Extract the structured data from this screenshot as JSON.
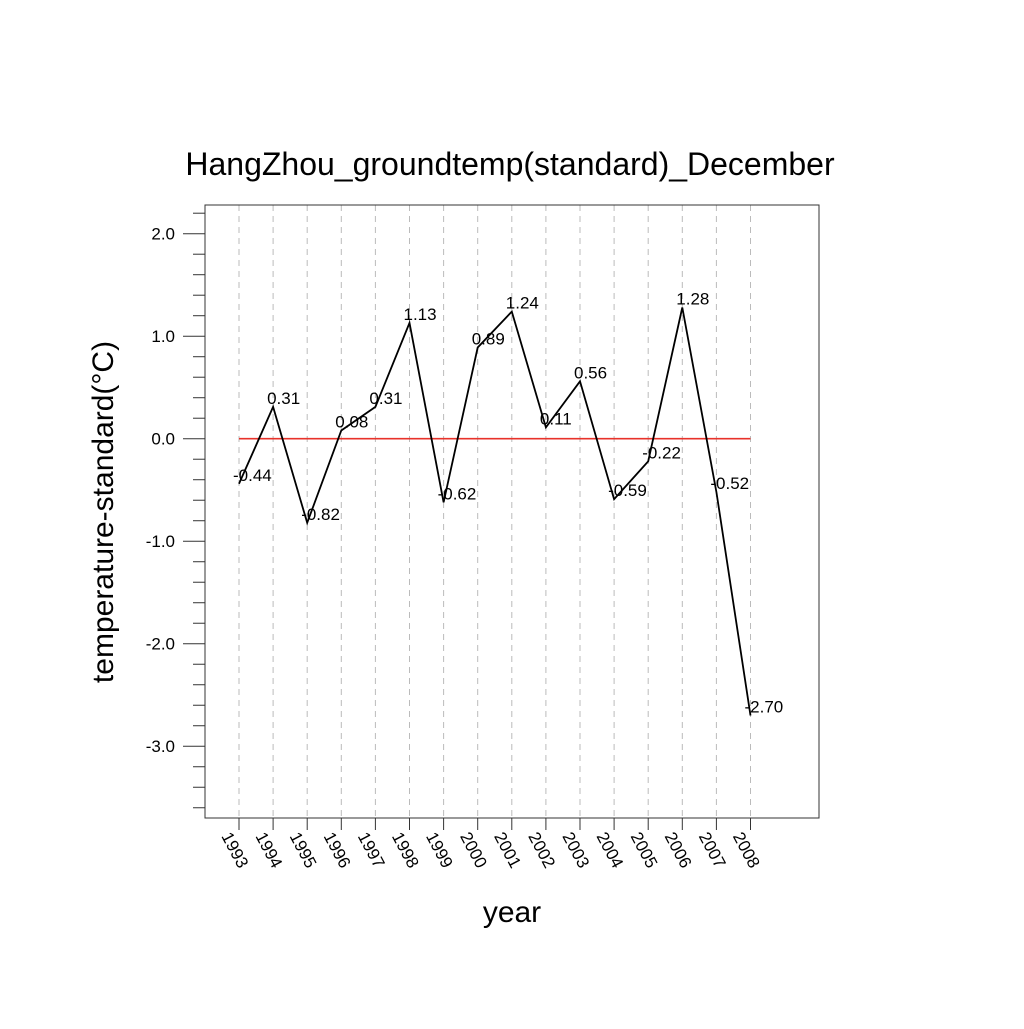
{
  "chart_data": {
    "type": "line",
    "title": "HangZhou_groundtemp(standard)_December",
    "xlabel": "year",
    "ylabel": "temperature-standard(°C)",
    "categories": [
      "1993",
      "1994",
      "1995",
      "1996",
      "1997",
      "1998",
      "1999",
      "2000",
      "2001",
      "2002",
      "2003",
      "2004",
      "2005",
      "2006",
      "2007",
      "2008"
    ],
    "series": [
      {
        "values": [
          -0.44,
          0.31,
          -0.82,
          0.08,
          0.31,
          1.13,
          -0.62,
          0.89,
          1.24,
          0.11,
          0.56,
          -0.59,
          -0.22,
          1.28,
          -0.52,
          -2.7
        ],
        "labels": [
          "-0.44",
          "0.31",
          "-0.82",
          "0.08",
          "0.31",
          "1.13",
          "-0.62",
          "0.89",
          "1.24",
          "0.11",
          "0.56",
          "-0.59",
          "-0.22",
          "1.28",
          "-0.52",
          "-2.70"
        ],
        "color": "#000000"
      }
    ],
    "reference_line": {
      "y": 0.0,
      "color": "#e8322a"
    },
    "ylim": [
      -3.7,
      2.28
    ],
    "yticks": [
      2.0,
      1.0,
      0.0,
      -1.0,
      -2.0,
      -3.0
    ],
    "ytick_labels": [
      "2.0",
      "1.0",
      "0.0",
      "-1.0",
      "-2.0",
      "-3.0"
    ],
    "grid": "vertical-dashed",
    "grid_color": "#bbbbbb",
    "legend": "none"
  }
}
